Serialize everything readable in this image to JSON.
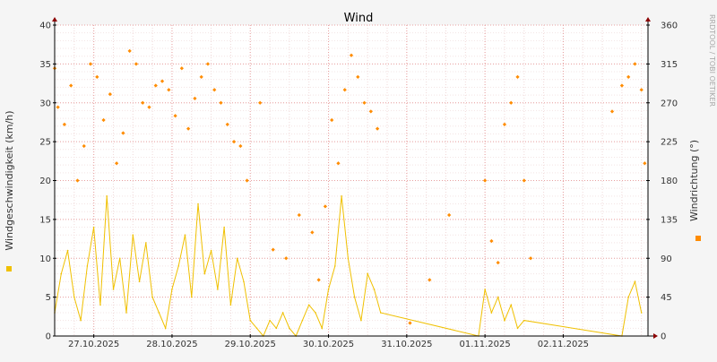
{
  "chart_data": {
    "type": "line",
    "title": "Wind",
    "watermark": "RRDTOOL / TOBI OETIKER",
    "x": {
      "range": [
        "2025-10-26T12:00",
        "2025-11-03T02:00"
      ],
      "tick_labels": [
        "27.10.2025",
        "28.10.2025",
        "29.10.2025",
        "30.10.2025",
        "31.10.2025",
        "01.11.2025",
        "02.11.2025"
      ],
      "tick_dates": [
        "2025-10-27T00:00",
        "2025-10-28T00:00",
        "2025-10-29T00:00",
        "2025-10-30T00:00",
        "2025-10-31T00:00",
        "2025-11-01T00:00",
        "2025-11-02T00:00"
      ]
    },
    "y_left": {
      "label": "Windgeschwindigkeit (km/h)",
      "ylim": [
        0,
        40
      ],
      "ticks": [
        0,
        5,
        10,
        15,
        20,
        25,
        30,
        35,
        40
      ]
    },
    "y_right": {
      "label": "Windrichtung (°)",
      "ylim": [
        0,
        360
      ],
      "ticks": [
        0,
        45,
        90,
        135,
        180,
        225,
        270,
        315,
        360
      ]
    },
    "grid": true,
    "legend": [
      {
        "side": "left",
        "color": "#f0c000"
      },
      {
        "side": "right",
        "color": "#ff8c00"
      }
    ],
    "series": [
      {
        "axis": "left",
        "style": "line",
        "color": "#f0c000",
        "x": [
          "2025-10-26T12:00",
          "2025-10-26T14:00",
          "2025-10-26T16:00",
          "2025-10-26T18:00",
          "2025-10-26T20:00",
          "2025-10-26T22:00",
          "2025-10-27T00:00",
          "2025-10-27T02:00",
          "2025-10-27T04:00",
          "2025-10-27T06:00",
          "2025-10-27T08:00",
          "2025-10-27T10:00",
          "2025-10-27T12:00",
          "2025-10-27T14:00",
          "2025-10-27T16:00",
          "2025-10-27T18:00",
          "2025-10-27T20:00",
          "2025-10-27T22:00",
          "2025-10-28T00:00",
          "2025-10-28T02:00",
          "2025-10-28T04:00",
          "2025-10-28T06:00",
          "2025-10-28T08:00",
          "2025-10-28T10:00",
          "2025-10-28T12:00",
          "2025-10-28T14:00",
          "2025-10-28T16:00",
          "2025-10-28T18:00",
          "2025-10-28T20:00",
          "2025-10-28T22:00",
          "2025-10-29T00:00",
          "2025-10-29T02:00",
          "2025-10-29T04:00",
          "2025-10-29T06:00",
          "2025-10-29T08:00",
          "2025-10-29T10:00",
          "2025-10-29T12:00",
          "2025-10-29T14:00",
          "2025-10-29T16:00",
          "2025-10-29T18:00",
          "2025-10-29T20:00",
          "2025-10-29T22:00",
          "2025-10-30T00:00",
          "2025-10-30T02:00",
          "2025-10-30T04:00",
          "2025-10-30T06:00",
          "2025-10-30T08:00",
          "2025-10-30T10:00",
          "2025-10-30T12:00",
          "2025-10-30T14:00",
          "2025-10-30T16:00",
          "2025-10-31T22:00",
          "2025-11-01T00:00",
          "2025-11-01T02:00",
          "2025-11-01T04:00",
          "2025-11-01T06:00",
          "2025-11-01T08:00",
          "2025-11-01T10:00",
          "2025-11-01T12:00",
          "2025-11-02T18:00",
          "2025-11-02T20:00",
          "2025-11-02T22:00",
          "2025-11-03T00:00"
        ],
        "values": [
          3,
          8,
          11,
          5,
          2,
          9,
          14,
          4,
          18,
          6,
          10,
          3,
          13,
          7,
          12,
          5,
          3,
          1,
          6,
          9,
          13,
          5,
          17,
          8,
          11,
          6,
          14,
          4,
          10,
          7,
          2,
          1,
          0,
          2,
          1,
          3,
          1,
          0,
          2,
          4,
          3,
          1,
          6,
          9,
          18,
          10,
          5,
          2,
          8,
          6,
          3,
          0,
          6,
          3,
          5,
          2,
          4,
          1,
          2,
          0,
          5,
          7,
          3
        ]
      },
      {
        "axis": "right",
        "style": "scatter",
        "color": "#ff8c00",
        "x": [
          "2025-10-26T12:00",
          "2025-10-26T13:00",
          "2025-10-26T15:00",
          "2025-10-26T17:00",
          "2025-10-26T19:00",
          "2025-10-26T21:00",
          "2025-10-26T23:00",
          "2025-10-27T01:00",
          "2025-10-27T03:00",
          "2025-10-27T05:00",
          "2025-10-27T07:00",
          "2025-10-27T09:00",
          "2025-10-27T11:00",
          "2025-10-27T13:00",
          "2025-10-27T15:00",
          "2025-10-27T17:00",
          "2025-10-27T19:00",
          "2025-10-27T21:00",
          "2025-10-27T23:00",
          "2025-10-28T01:00",
          "2025-10-28T03:00",
          "2025-10-28T05:00",
          "2025-10-28T07:00",
          "2025-10-28T09:00",
          "2025-10-28T11:00",
          "2025-10-28T13:00",
          "2025-10-28T15:00",
          "2025-10-28T17:00",
          "2025-10-28T19:00",
          "2025-10-28T21:00",
          "2025-10-28T23:00",
          "2025-10-29T03:00",
          "2025-10-29T07:00",
          "2025-10-29T11:00",
          "2025-10-29T15:00",
          "2025-10-29T19:00",
          "2025-10-29T21:00",
          "2025-10-29T23:00",
          "2025-10-30T01:00",
          "2025-10-30T03:00",
          "2025-10-30T05:00",
          "2025-10-30T07:00",
          "2025-10-30T09:00",
          "2025-10-30T11:00",
          "2025-10-30T13:00",
          "2025-10-30T15:00",
          "2025-10-31T01:00",
          "2025-10-31T07:00",
          "2025-10-31T13:00",
          "2025-11-01T00:00",
          "2025-11-01T02:00",
          "2025-11-01T04:00",
          "2025-11-01T06:00",
          "2025-11-01T08:00",
          "2025-11-01T10:00",
          "2025-11-01T12:00",
          "2025-11-01T14:00",
          "2025-11-02T15:00",
          "2025-11-02T18:00",
          "2025-11-02T20:00",
          "2025-11-02T22:00",
          "2025-11-03T00:00",
          "2025-11-03T01:00"
        ],
        "values": [
          310,
          265,
          245,
          290,
          180,
          220,
          315,
          300,
          250,
          280,
          200,
          235,
          330,
          315,
          270,
          265,
          290,
          295,
          285,
          255,
          310,
          240,
          275,
          300,
          315,
          285,
          270,
          245,
          225,
          220,
          180,
          270,
          100,
          90,
          140,
          120,
          65,
          150,
          250,
          200,
          285,
          325,
          300,
          270,
          260,
          240,
          15,
          65,
          140,
          180,
          110,
          85,
          245,
          270,
          300,
          180,
          90,
          260,
          290,
          300,
          315,
          285,
          200
        ]
      }
    ]
  }
}
